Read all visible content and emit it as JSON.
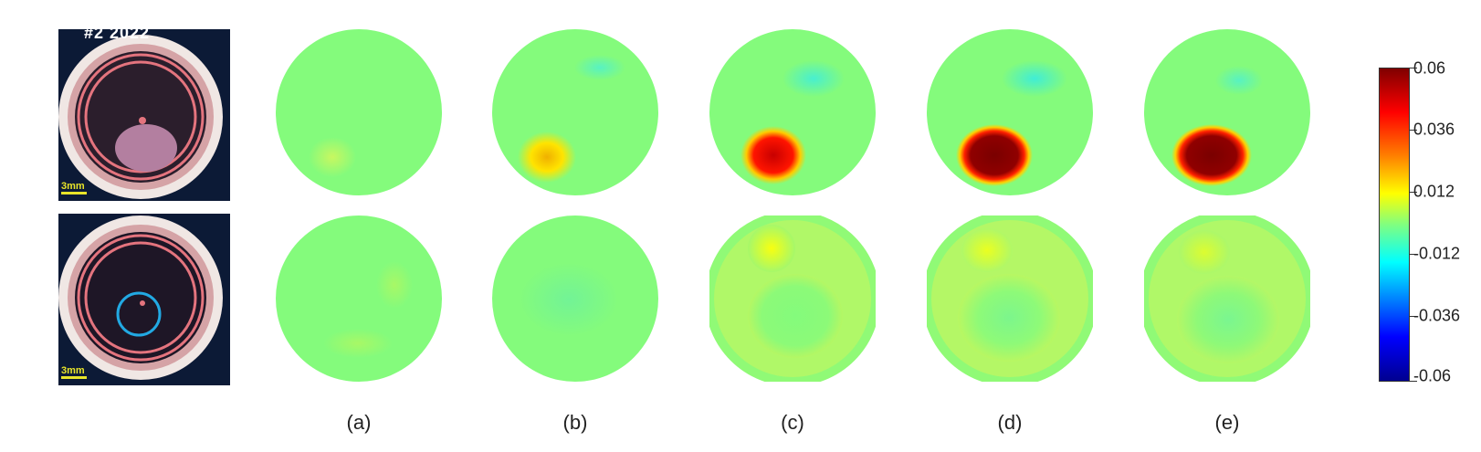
{
  "photos": {
    "top": {
      "corner_text": "#2 2022",
      "scale_label": "3mm"
    },
    "bottom": {
      "scale_label": "3mm"
    }
  },
  "panel_labels": [
    "(a)",
    "(b)",
    "(c)",
    "(d)",
    "(e)"
  ],
  "colorbar": {
    "ticks": [
      "0.06",
      "0.036",
      "0.012",
      "-0.012",
      "-0.036",
      "-0.06"
    ],
    "range": [
      -0.06,
      0.06
    ],
    "colormap": "jet"
  },
  "colors": {
    "background_field": "#84fb7c",
    "photo_background": "#0c1a36",
    "electrode_ring": "#e4747e",
    "target_circle": "#22a9e3",
    "scale_text": "#e8e42a"
  }
}
